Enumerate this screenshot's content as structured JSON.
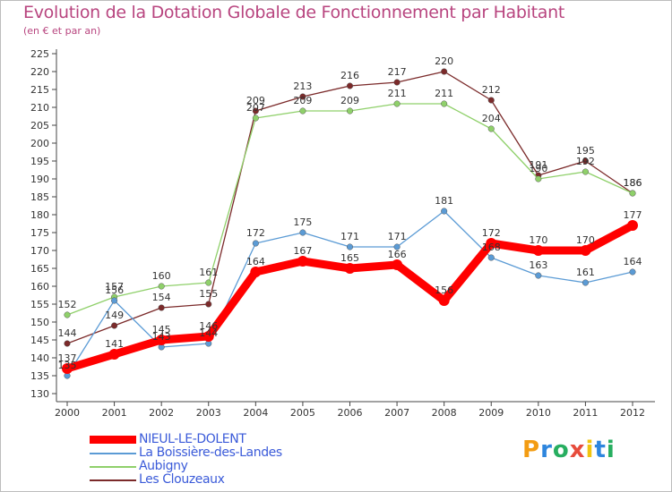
{
  "title": "Evolution de la Dotation Globale de Fonctionnement par Habitant",
  "subtitle": "(en € et par an)",
  "logo": {
    "letters": [
      "P",
      "r",
      "o",
      "x",
      "i",
      "t",
      "i"
    ],
    "colors": [
      "#f39c12",
      "#2e86de",
      "#27ae60",
      "#e74c3c",
      "#f1c40f",
      "#2e86de",
      "#27ae60"
    ]
  },
  "chart_data": {
    "type": "line",
    "title": "Evolution de la Dotation Globale de Fonctionnement par Habitant",
    "subtitle": "(en € et par an)",
    "x": [
      "2000",
      "2001",
      "2002",
      "2003",
      "2004",
      "2005",
      "2006",
      "2007",
      "2008",
      "2009",
      "2010",
      "2011",
      "2012"
    ],
    "ylim": [
      130,
      225
    ],
    "yticks": [
      130,
      135,
      140,
      145,
      150,
      155,
      160,
      165,
      170,
      175,
      180,
      185,
      190,
      195,
      200,
      205,
      210,
      215,
      220,
      225
    ],
    "grid": false,
    "legend_position": "bottom-left",
    "series": [
      {
        "name": "NIEUL-LE-DOLENT",
        "color": "#ff0000",
        "values": [
          137,
          141,
          145,
          146,
          164,
          167,
          165,
          166,
          156,
          172,
          170,
          170,
          177
        ]
      },
      {
        "name": "La Boissière-des-Landes",
        "color": "#5b9bd5",
        "values": [
          135,
          156,
          143,
          144,
          172,
          175,
          171,
          171,
          181,
          168,
          163,
          161,
          164
        ]
      },
      {
        "name": "Aubigny",
        "color": "#8fd06a",
        "values": [
          152,
          157,
          160,
          161,
          207,
          209,
          209,
          211,
          211,
          204,
          190,
          192,
          186
        ]
      },
      {
        "name": "Les Clouzeaux",
        "color": "#7b2a2a",
        "values": [
          144,
          149,
          154,
          155,
          209,
          213,
          216,
          217,
          220,
          212,
          191,
          195,
          186
        ]
      }
    ]
  }
}
